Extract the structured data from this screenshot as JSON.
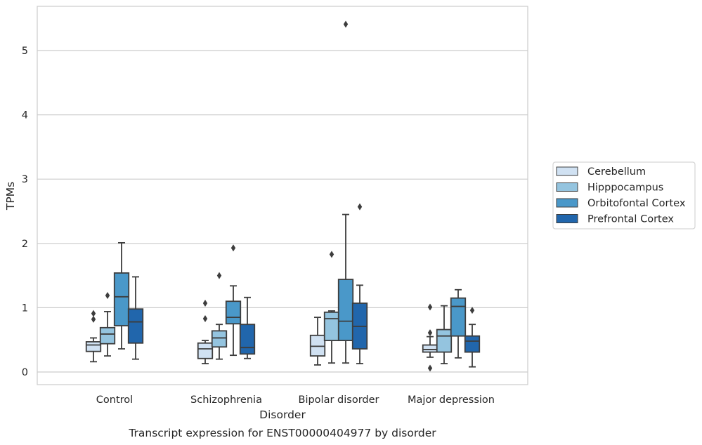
{
  "chart_data": {
    "type": "box",
    "title": "",
    "caption": "Transcript expression for ENST00000404977 by disorder",
    "xlabel": "Disorder",
    "ylabel": "TPMs",
    "ylim": [
      -0.2,
      5.7
    ],
    "yticks": [
      0,
      1,
      2,
      3,
      4,
      5
    ],
    "grid": "horizontal",
    "legend_position": "right",
    "categories": [
      "Control",
      "Schizophrenia",
      "Bipolar disorder",
      "Major depression"
    ],
    "series": [
      {
        "name": "Cerebellum",
        "color": "#d0e1f2",
        "boxes": [
          {
            "whislo": 0.16,
            "q1": 0.32,
            "med": 0.42,
            "q3": 0.47,
            "whishi": 0.53,
            "fliers": [
              0.82,
              0.91
            ]
          },
          {
            "whislo": 0.13,
            "q1": 0.21,
            "med": 0.36,
            "q3": 0.45,
            "whishi": 0.49,
            "fliers": [
              0.83,
              1.07
            ]
          },
          {
            "whislo": 0.11,
            "q1": 0.25,
            "med": 0.4,
            "q3": 0.57,
            "whishi": 0.85,
            "fliers": []
          },
          {
            "whislo": 0.23,
            "q1": 0.31,
            "med": 0.35,
            "q3": 0.42,
            "whishi": 0.55,
            "fliers": [
              0.06,
              0.61,
              1.01
            ]
          }
        ]
      },
      {
        "name": "Hipppocampus",
        "color": "#94c4df",
        "boxes": [
          {
            "whislo": 0.25,
            "q1": 0.44,
            "med": 0.59,
            "q3": 0.69,
            "whishi": 0.94,
            "fliers": [
              1.19
            ]
          },
          {
            "whislo": 0.2,
            "q1": 0.39,
            "med": 0.53,
            "q3": 0.64,
            "whishi": 0.74,
            "fliers": [
              1.5
            ]
          },
          {
            "whislo": 0.14,
            "q1": 0.49,
            "med": 0.83,
            "q3": 0.93,
            "whishi": 0.95,
            "fliers": [
              1.83
            ]
          },
          {
            "whislo": 0.13,
            "q1": 0.31,
            "med": 0.56,
            "q3": 0.66,
            "whishi": 1.03,
            "fliers": []
          }
        ]
      },
      {
        "name": "Orbitofontal Cortex",
        "color": "#4a98c9",
        "boxes": [
          {
            "whislo": 0.36,
            "q1": 0.72,
            "med": 1.17,
            "q3": 1.54,
            "whishi": 2.01,
            "fliers": []
          },
          {
            "whislo": 0.26,
            "q1": 0.75,
            "med": 0.85,
            "q3": 1.1,
            "whishi": 1.34,
            "fliers": [
              1.93
            ]
          },
          {
            "whislo": 0.14,
            "q1": 0.49,
            "med": 0.79,
            "q3": 1.44,
            "whishi": 2.45,
            "fliers": [
              5.41
            ]
          },
          {
            "whislo": 0.22,
            "q1": 0.56,
            "med": 1.02,
            "q3": 1.15,
            "whishi": 1.28,
            "fliers": []
          }
        ]
      },
      {
        "name": "Prefrontal Cortex",
        "color": "#2166ac",
        "boxes": [
          {
            "whislo": 0.2,
            "q1": 0.45,
            "med": 0.78,
            "q3": 0.98,
            "whishi": 1.48,
            "fliers": []
          },
          {
            "whislo": 0.21,
            "q1": 0.28,
            "med": 0.38,
            "q3": 0.74,
            "whishi": 1.16,
            "fliers": []
          },
          {
            "whislo": 0.13,
            "q1": 0.36,
            "med": 0.71,
            "q3": 1.07,
            "whishi": 1.35,
            "fliers": [
              2.57
            ]
          },
          {
            "whislo": 0.08,
            "q1": 0.31,
            "med": 0.48,
            "q3": 0.56,
            "whishi": 0.74,
            "fliers": [
              0.96
            ]
          }
        ]
      }
    ]
  }
}
